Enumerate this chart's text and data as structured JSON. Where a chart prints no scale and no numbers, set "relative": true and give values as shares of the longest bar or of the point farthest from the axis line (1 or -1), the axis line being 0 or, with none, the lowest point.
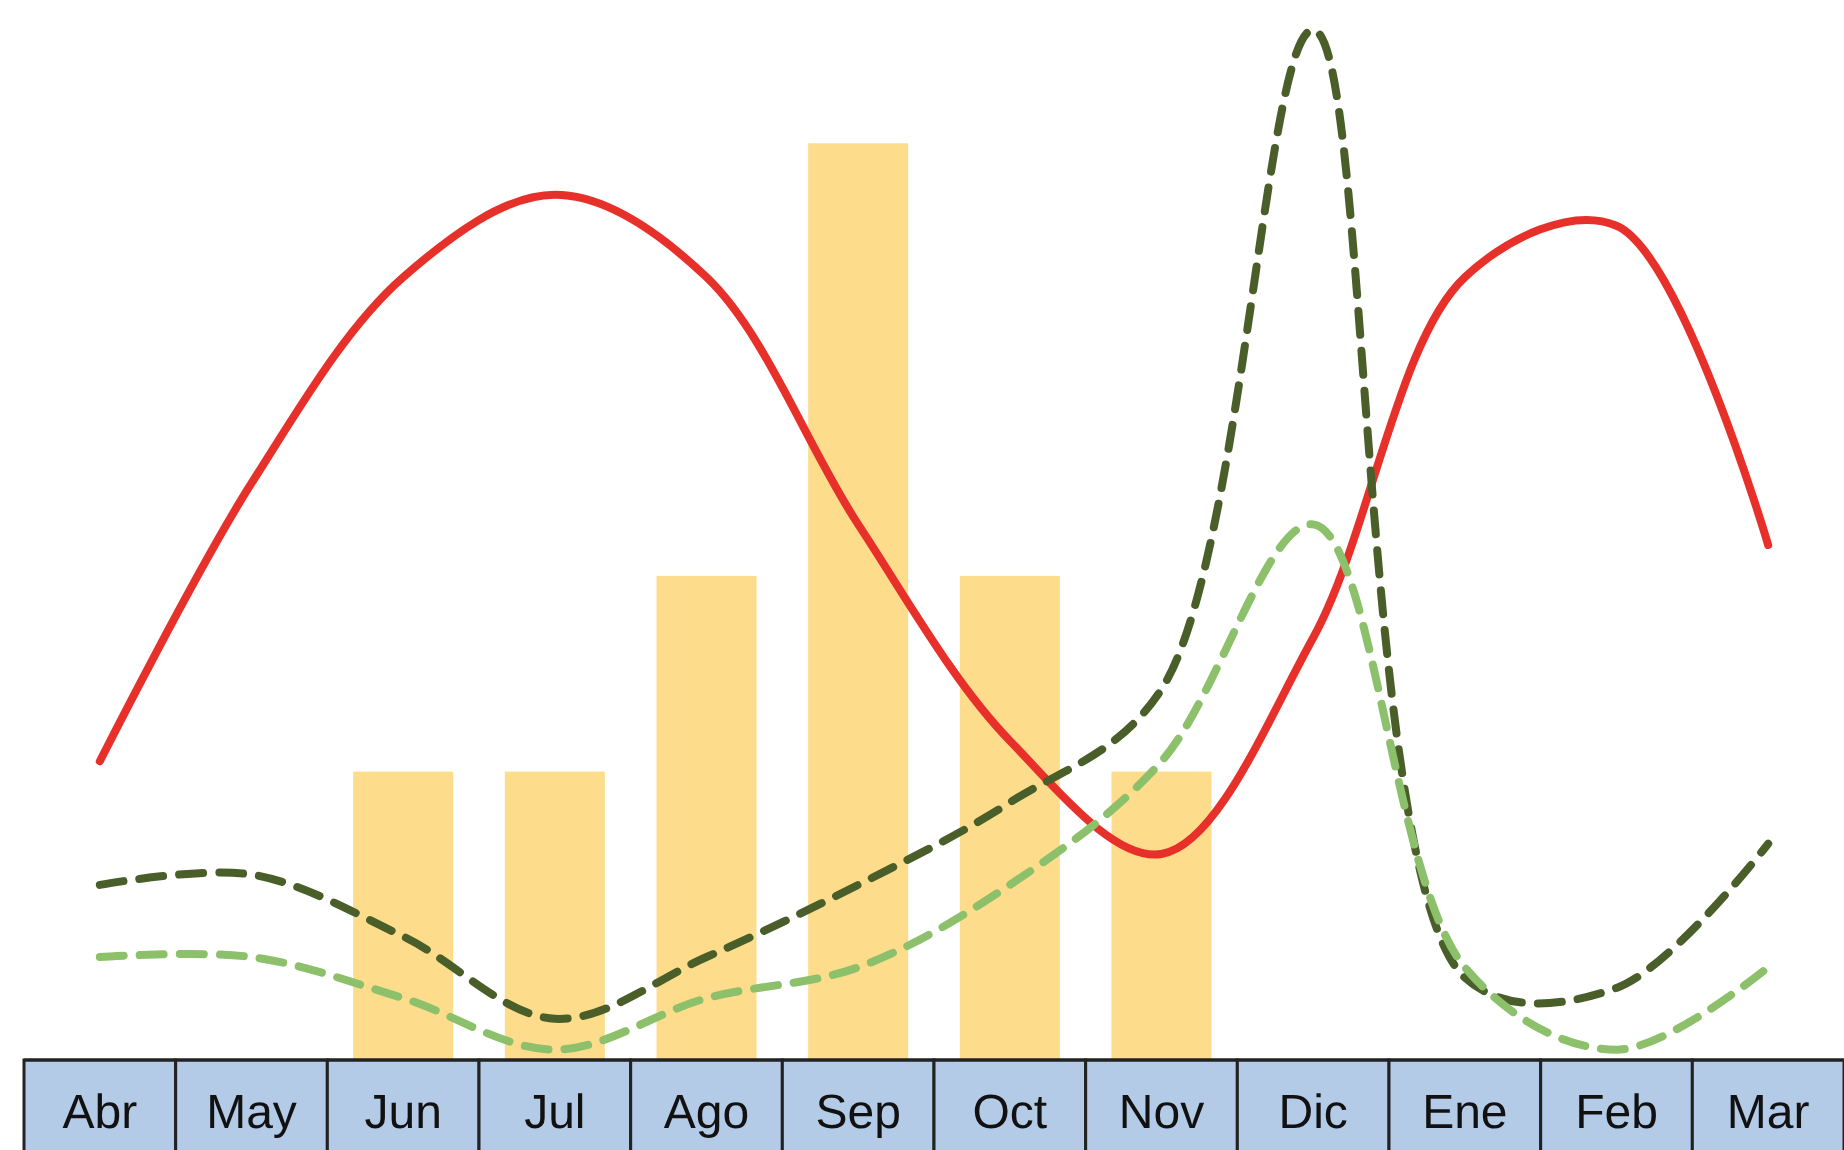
{
  "chart_data": {
    "type": "bar",
    "relative": true,
    "categories": [
      "Abr",
      "May",
      "Jun",
      "Jul",
      "Ago",
      "Sep",
      "Oct",
      "Nov",
      "Dic",
      "Ene",
      "Feb",
      "Mar"
    ],
    "series": [
      {
        "color": "#fddc8c",
        "values": [
          null,
          null,
          0.28,
          0.28,
          0.47,
          0.89,
          0.47,
          0.28,
          null,
          null,
          null,
          null
        ]
      },
      {
        "type": "line",
        "color": "#e8302a",
        "line_style": "solid",
        "values": [
          0.29,
          0.56,
          0.76,
          0.84,
          0.76,
          0.52,
          0.31,
          0.2,
          0.41,
          0.76,
          0.81,
          0.5
        ]
      },
      {
        "type": "line",
        "color": "#4a5e2a",
        "line_style": "dashed",
        "values": [
          0.17,
          0.18,
          0.12,
          0.04,
          0.1,
          0.17,
          0.25,
          0.36,
          1,
          0.08,
          0.07,
          0.21
        ]
      },
      {
        "type": "line",
        "color": "#8cc06a",
        "line_style": "dashed",
        "values": [
          0.1,
          0.1,
          0.06,
          0.01,
          0.06,
          0.09,
          0.17,
          0.29,
          0.52,
          0.09,
          0.01,
          0.09
        ]
      }
    ]
  }
}
